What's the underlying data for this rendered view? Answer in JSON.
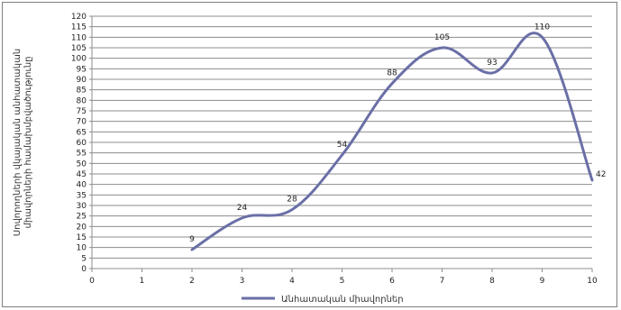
{
  "chart_data": {
    "type": "line",
    "title": "",
    "xlabel": "",
    "ylabel": [
      "Սովորողների վկայական անհատական",
      "միավորների համախմբվածությունը"
    ],
    "xlim": [
      0,
      10
    ],
    "ylim": [
      0,
      120
    ],
    "x_ticks": [
      0,
      1,
      2,
      3,
      4,
      5,
      6,
      7,
      8,
      9,
      10
    ],
    "y_ticks": [
      0,
      5,
      10,
      15,
      20,
      25,
      30,
      35,
      40,
      45,
      50,
      55,
      60,
      65,
      70,
      75,
      80,
      85,
      90,
      95,
      100,
      105,
      110,
      115,
      120
    ],
    "grid": "horizontal",
    "legend_position": "bottom",
    "smooth": true,
    "series": [
      {
        "name": "Անհատական միավորներ",
        "color": "#6a6fa6",
        "x": [
          2,
          3,
          4,
          5,
          6,
          7,
          8,
          9,
          10
        ],
        "values": [
          9,
          24,
          28,
          54,
          88,
          105,
          93,
          110,
          42
        ],
        "data_labels": [
          "9",
          "24",
          "28",
          "54",
          "88",
          "105",
          "93",
          "110",
          "42"
        ]
      }
    ]
  }
}
